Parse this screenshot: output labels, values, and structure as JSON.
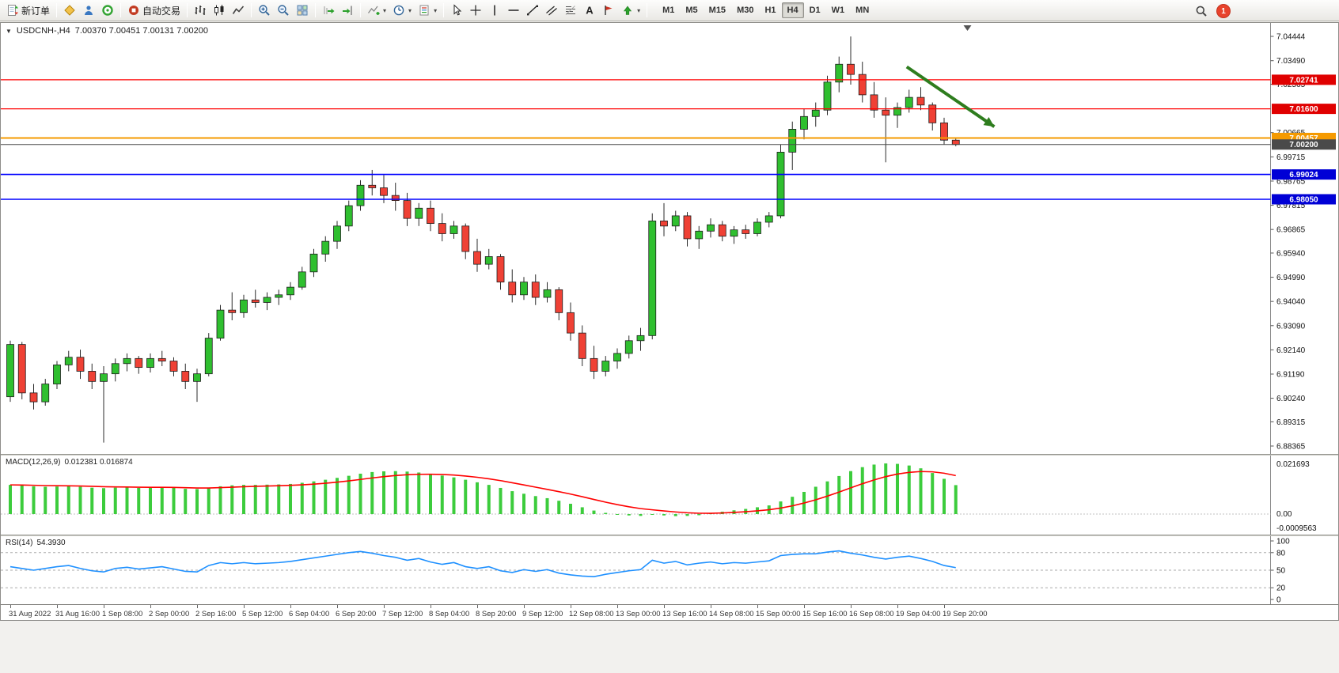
{
  "toolbar": {
    "new_order_label": "新订单",
    "auto_trading_label": "自动交易",
    "dropdown_glyph": "▾",
    "timeframes": [
      "M1",
      "M5",
      "M15",
      "M30",
      "H1",
      "H4",
      "D1",
      "W1",
      "MN"
    ],
    "active_timeframe": "H4",
    "notification_count": "1",
    "icons": [
      "new-order",
      "metaeditor",
      "market-watch",
      "community",
      "auto-trading",
      "bars-chart",
      "candlestick-chart",
      "line-chart",
      "zoom-in",
      "zoom-out",
      "tile-windows",
      "auto-scroll",
      "chart-shift",
      "indicators",
      "periods",
      "templates",
      "cursor",
      "crosshair",
      "vertical-line",
      "horizontal-line",
      "trendline",
      "equidistant-channel",
      "fibonacci",
      "text",
      "text-label",
      "arrows",
      "search",
      "notifications"
    ]
  },
  "chart": {
    "menu_caret": "▼",
    "title": "USDCNH-,H4",
    "ohlc": "7.00370 7.00451 7.00131 7.00200"
  },
  "indicators": {
    "macd": {
      "name": "MACD(12,26,9)",
      "values": "0.012381 0.016874"
    },
    "rsi": {
      "name": "RSI(14)",
      "value": "54.3930"
    }
  },
  "chart_data": {
    "type": "candlestick",
    "symbol": "USDCNH",
    "timeframe": "H4",
    "candles": {
      "label_every": 4,
      "time_labels": [
        "31 Aug 2022",
        "31 Aug 16:00",
        "1 Sep 08:00",
        "2 Sep 00:00",
        "2 Sep 16:00",
        "5 Sep 12:00",
        "6 Sep 04:00",
        "6 Sep 20:00",
        "7 Sep 12:00",
        "8 Sep 04:00",
        "8 Sep 20:00",
        "9 Sep 12:00",
        "12 Sep 08:00",
        "13 Sep 00:00",
        "13 Sep 16:00",
        "14 Sep 08:00",
        "15 Sep 00:00",
        "15 Sep 16:00",
        "16 Sep 08:00",
        "19 Sep 04:00",
        "19 Sep 20:00"
      ],
      "ohlc": [
        [
          6.903,
          6.925,
          6.901,
          6.9235
        ],
        [
          6.9235,
          6.9245,
          6.902,
          6.9045
        ],
        [
          6.9045,
          6.908,
          6.898,
          6.901
        ],
        [
          6.901,
          6.91,
          6.8995,
          6.908
        ],
        [
          6.908,
          6.917,
          6.906,
          6.9155
        ],
        [
          6.9155,
          6.921,
          6.913,
          6.9185
        ],
        [
          6.9185,
          6.9215,
          6.91,
          6.913
        ],
        [
          6.913,
          6.916,
          6.906,
          6.909
        ],
        [
          6.909,
          6.915,
          6.885,
          6.912
        ],
        [
          6.912,
          6.918,
          6.909,
          6.916
        ],
        [
          6.916,
          6.92,
          6.913,
          6.918
        ],
        [
          6.918,
          6.919,
          6.912,
          6.9145
        ],
        [
          6.9145,
          6.92,
          6.9125,
          6.918
        ],
        [
          6.918,
          6.921,
          6.915,
          6.917
        ],
        [
          6.917,
          6.9185,
          6.911,
          6.913
        ],
        [
          6.913,
          6.916,
          6.906,
          6.909
        ],
        [
          6.909,
          6.914,
          6.901,
          6.912
        ],
        [
          6.912,
          6.928,
          6.911,
          6.926
        ],
        [
          6.926,
          6.939,
          6.925,
          6.937
        ],
        [
          6.937,
          6.944,
          6.933,
          6.936
        ],
        [
          6.936,
          6.943,
          6.934,
          6.941
        ],
        [
          6.941,
          6.945,
          6.938,
          6.94
        ],
        [
          6.94,
          6.944,
          6.937,
          6.942
        ],
        [
          6.942,
          6.945,
          6.939,
          6.943
        ],
        [
          6.943,
          6.948,
          6.941,
          6.946
        ],
        [
          6.946,
          6.954,
          6.945,
          6.952
        ],
        [
          6.952,
          6.961,
          6.95,
          6.959
        ],
        [
          6.959,
          6.966,
          6.956,
          6.964
        ],
        [
          6.964,
          6.972,
          6.961,
          6.97
        ],
        [
          6.97,
          6.98,
          6.968,
          6.978
        ],
        [
          6.978,
          6.988,
          6.976,
          6.986
        ],
        [
          6.986,
          6.992,
          6.982,
          6.985
        ],
        [
          6.985,
          6.99,
          6.979,
          6.982
        ],
        [
          6.982,
          6.987,
          6.976,
          6.98
        ],
        [
          6.98,
          6.983,
          6.97,
          6.973
        ],
        [
          6.973,
          6.979,
          6.97,
          6.977
        ],
        [
          6.977,
          6.98,
          6.968,
          6.971
        ],
        [
          6.971,
          6.975,
          6.964,
          6.967
        ],
        [
          6.967,
          6.972,
          6.965,
          6.97
        ],
        [
          6.97,
          6.971,
          6.957,
          6.96
        ],
        [
          6.96,
          6.965,
          6.952,
          6.955
        ],
        [
          6.955,
          6.961,
          6.953,
          6.958
        ],
        [
          6.958,
          6.959,
          6.945,
          6.948
        ],
        [
          6.948,
          6.953,
          6.94,
          6.943
        ],
        [
          6.943,
          6.95,
          6.941,
          6.948
        ],
        [
          6.948,
          6.951,
          6.939,
          6.942
        ],
        [
          6.942,
          6.948,
          6.94,
          6.945
        ],
        [
          6.945,
          6.946,
          6.933,
          6.936
        ],
        [
          6.936,
          6.94,
          6.925,
          6.928
        ],
        [
          6.928,
          6.931,
          6.915,
          6.918
        ],
        [
          6.918,
          6.923,
          6.91,
          6.913
        ],
        [
          6.913,
          6.919,
          6.911,
          6.917
        ],
        [
          6.917,
          6.922,
          6.914,
          6.92
        ],
        [
          6.92,
          6.927,
          6.918,
          6.925
        ],
        [
          6.925,
          6.93,
          6.921,
          6.927
        ],
        [
          6.927,
          6.975,
          6.9255,
          6.972
        ],
        [
          6.972,
          6.979,
          6.966,
          6.97
        ],
        [
          6.97,
          6.976,
          6.968,
          6.974
        ],
        [
          6.974,
          6.9755,
          6.962,
          6.965
        ],
        [
          6.965,
          6.97,
          6.961,
          6.968
        ],
        [
          6.968,
          6.973,
          6.9655,
          6.9705
        ],
        [
          6.9705,
          6.972,
          6.964,
          6.966
        ],
        [
          6.966,
          6.97,
          6.963,
          6.9685
        ],
        [
          6.9685,
          6.9705,
          6.965,
          6.967
        ],
        [
          6.967,
          6.973,
          6.966,
          6.9715
        ],
        [
          6.9715,
          6.9755,
          6.9695,
          6.974
        ],
        [
          6.974,
          7.002,
          6.973,
          6.999
        ],
        [
          6.999,
          7.011,
          6.992,
          7.008
        ],
        [
          7.008,
          7.016,
          7.004,
          7.013
        ],
        [
          7.013,
          7.0185,
          7.009,
          7.0155
        ],
        [
          7.0155,
          7.029,
          7.0135,
          7.0265
        ],
        [
          7.0265,
          7.0365,
          7.0225,
          7.0335
        ],
        [
          7.0335,
          7.0444,
          7.0255,
          7.0295
        ],
        [
          7.0295,
          7.0345,
          7.0185,
          7.0215
        ],
        [
          7.0215,
          7.0265,
          7.0125,
          7.0155
        ],
        [
          7.0155,
          7.0205,
          6.995,
          7.0135
        ],
        [
          7.0135,
          7.0185,
          7.0085,
          7.0165
        ],
        [
          7.0165,
          7.0235,
          7.0145,
          7.0205
        ],
        [
          7.0205,
          7.0245,
          7.0155,
          7.0175
        ],
        [
          7.0175,
          7.0185,
          7.0075,
          7.0105
        ],
        [
          7.0105,
          7.0125,
          7.002,
          7.0037
        ],
        [
          7.0037,
          7.00451,
          7.00131,
          7.002
        ]
      ]
    },
    "price_axis": {
      "range": {
        "top": 7.04444,
        "bottom": 6.88365
      },
      "ticks": [
        "7.04444",
        "7.03490",
        "7.02565",
        "7.00665",
        "6.99715",
        "6.98765",
        "6.97815",
        "6.96865",
        "6.95940",
        "6.94990",
        "6.94040",
        "6.93090",
        "6.92140",
        "6.91190",
        "6.90240",
        "6.89315",
        "6.88365"
      ],
      "badges": [
        {
          "value": "7.02741",
          "price": 7.02741,
          "color": "#e00000"
        },
        {
          "value": "7.01600",
          "price": 7.016,
          "color": "#e00000"
        },
        {
          "value": "7.00457",
          "price": 7.00457,
          "color": "#f59a00"
        },
        {
          "value": "7.00200",
          "price": 7.002,
          "color": "#4a4a4a"
        },
        {
          "value": "6.99024",
          "price": 6.99024,
          "color": "#0000d6"
        },
        {
          "value": "6.98050",
          "price": 6.9805,
          "color": "#0000d6"
        }
      ]
    },
    "hlines": [
      {
        "price": 7.02741,
        "color": "#ff0000",
        "width": 1.3
      },
      {
        "price": 7.016,
        "color": "#ff0000",
        "width": 1.3
      },
      {
        "price": 7.00457,
        "color": "#f59a00",
        "width": 2
      },
      {
        "price": 7.002,
        "color": "#4a4a4a",
        "width": 1
      },
      {
        "price": 6.99024,
        "color": "#0000ff",
        "width": 1.6
      },
      {
        "price": 6.9805,
        "color": "#0000ff",
        "width": 1.6
      }
    ],
    "annotation_arrow": {
      "from_bar": 76.8,
      "from_price": 7.0325,
      "to_bar": 84.3,
      "to_price": 7.009,
      "color": "#2e7d1e",
      "width": 4
    },
    "shift_marker_bar": 82,
    "macd": {
      "params": "12,26,9",
      "axis": [
        "0.021693",
        "0.00",
        "-0.0009563"
      ],
      "max": 0.021693,
      "signal_period": 9,
      "hist": [
        0.0125,
        0.0122,
        0.0119,
        0.0117,
        0.0118,
        0.012,
        0.0117,
        0.0113,
        0.0111,
        0.0113,
        0.0114,
        0.0112,
        0.0113,
        0.0114,
        0.0112,
        0.0108,
        0.0107,
        0.0112,
        0.0119,
        0.0123,
        0.0125,
        0.0125,
        0.0126,
        0.0127,
        0.0129,
        0.0134,
        0.014,
        0.0147,
        0.0155,
        0.0164,
        0.0173,
        0.018,
        0.0183,
        0.0184,
        0.0182,
        0.0178,
        0.0172,
        0.0165,
        0.0157,
        0.0147,
        0.0136,
        0.0125,
        0.0112,
        0.0098,
        0.0087,
        0.0077,
        0.0068,
        0.0057,
        0.0044,
        0.0029,
        0.0015,
        0.0005,
        -0.0002,
        -0.0006,
        -0.0008,
        -0.0002,
        -0.0006,
        -0.0009,
        -0.0008,
        -0.0005,
        0.0003,
        0.001,
        0.0016,
        0.0022,
        0.0029,
        0.0037,
        0.0054,
        0.0074,
        0.0095,
        0.0117,
        0.014,
        0.0163,
        0.0184,
        0.0201,
        0.0212,
        0.0217,
        0.0215,
        0.0208,
        0.0196,
        0.0176,
        0.0151,
        0.0124
      ]
    },
    "rsi": {
      "period": 14,
      "levels": [
        80,
        50,
        20
      ],
      "axis": [
        "100",
        "80",
        "50",
        "20",
        "0"
      ],
      "values": [
        56,
        53,
        50,
        53,
        56,
        58,
        53,
        49,
        47,
        53,
        55,
        52,
        54,
        56,
        52,
        48,
        47,
        58,
        63,
        61,
        63,
        61,
        62,
        63,
        65,
        68,
        71,
        74,
        77,
        80,
        82,
        79,
        75,
        72,
        67,
        70,
        64,
        60,
        63,
        56,
        53,
        56,
        49,
        46,
        51,
        48,
        51,
        45,
        42,
        40,
        39,
        43,
        46,
        49,
        51,
        67,
        62,
        65,
        59,
        62,
        64,
        61,
        63,
        62,
        64,
        66,
        75,
        77,
        78,
        78,
        81,
        83,
        79,
        76,
        72,
        69,
        72,
        74,
        70,
        65,
        58,
        54.39
      ]
    }
  },
  "colors": {
    "bull": "#2fbf2f",
    "bear": "#ef4135",
    "wick": "#2b2b2b",
    "candle_border": "#1d1d1d",
    "macd_hist": "#3ccc3c",
    "macd_signal": "#ff0000",
    "rsi_line": "#1e90ff",
    "axis_text": "#111111",
    "arrow_green": "#2e7d1e"
  }
}
